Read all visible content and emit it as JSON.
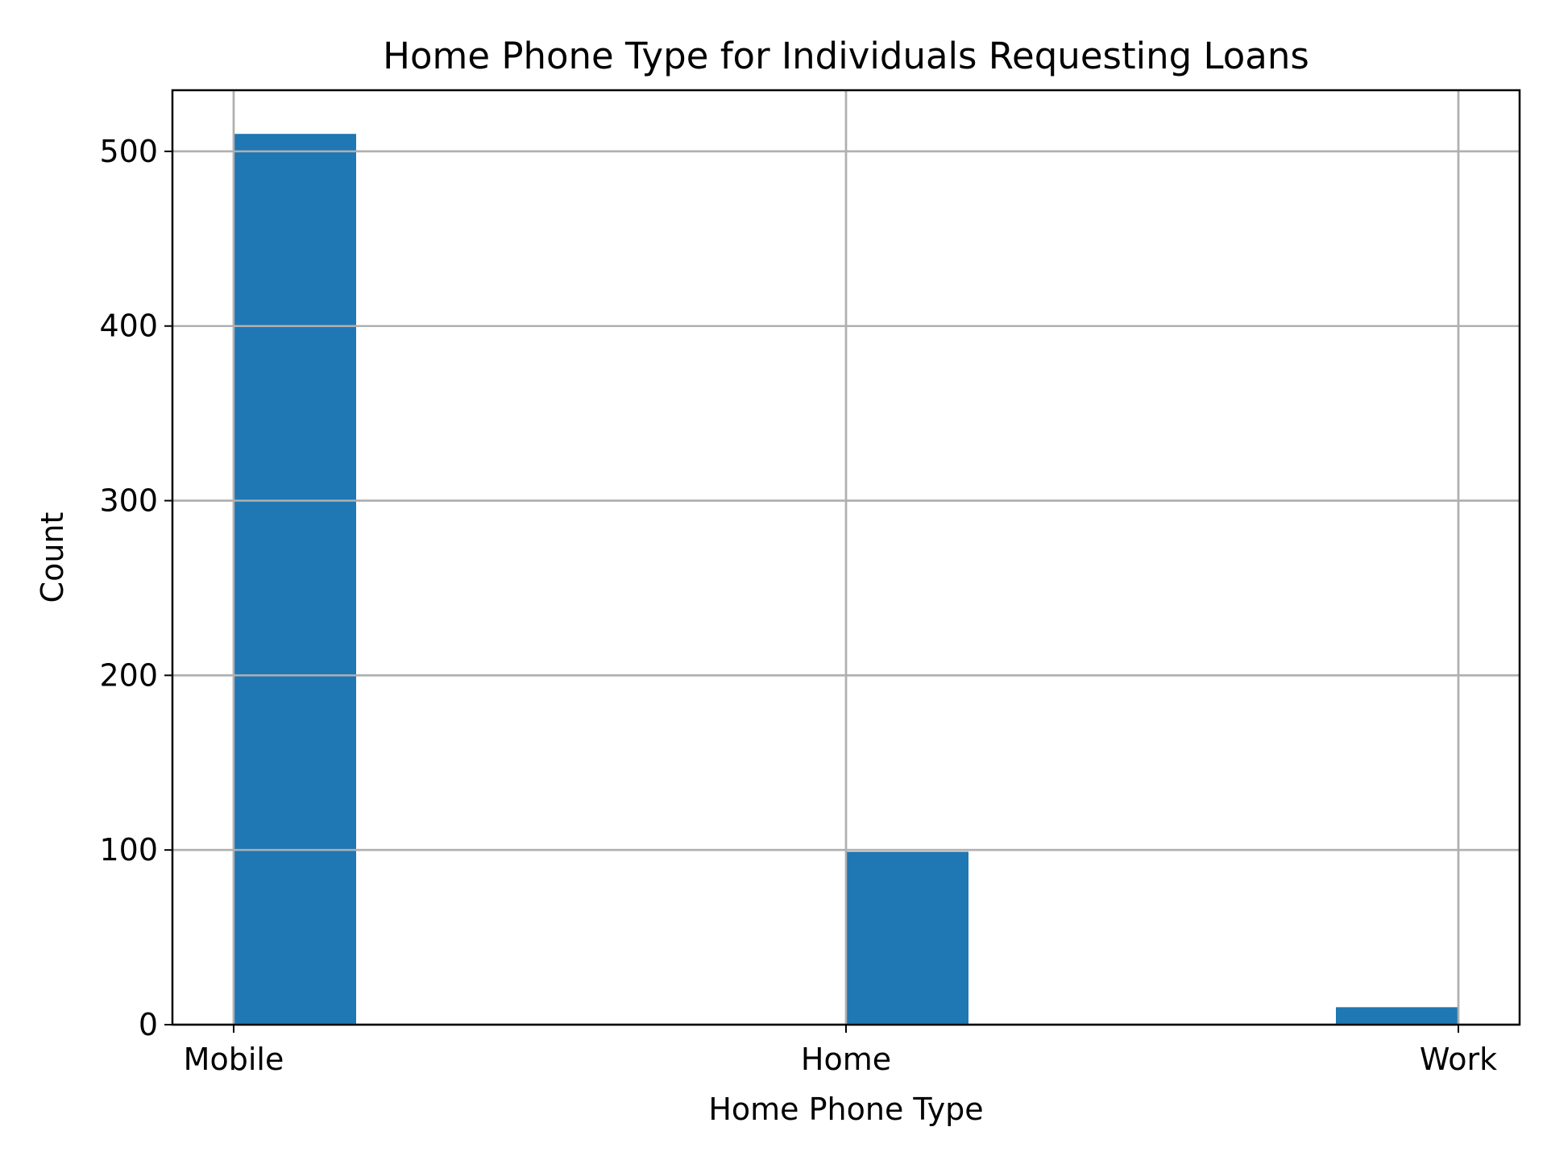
{
  "chart_data": {
    "type": "bar",
    "title": "Home Phone Type for Individuals Requesting Loans",
    "xlabel": "Home Phone Type",
    "ylabel": "Count",
    "categories": [
      "Mobile",
      "Home",
      "Work"
    ],
    "x_positions": [
      0,
      1,
      2
    ],
    "xlim": [
      -0.1,
      2.1
    ],
    "ylim": [
      0,
      535
    ],
    "yticks": [
      0,
      100,
      200,
      300,
      400,
      500
    ],
    "bins": [
      {
        "x0": 0.0,
        "x1": 0.2,
        "value": 510
      },
      {
        "x0": 1.0,
        "x1": 1.2,
        "value": 99
      },
      {
        "x0": 1.8,
        "x1": 2.0,
        "value": 10
      }
    ],
    "grid": true,
    "bar_color": "#1f77b4"
  }
}
